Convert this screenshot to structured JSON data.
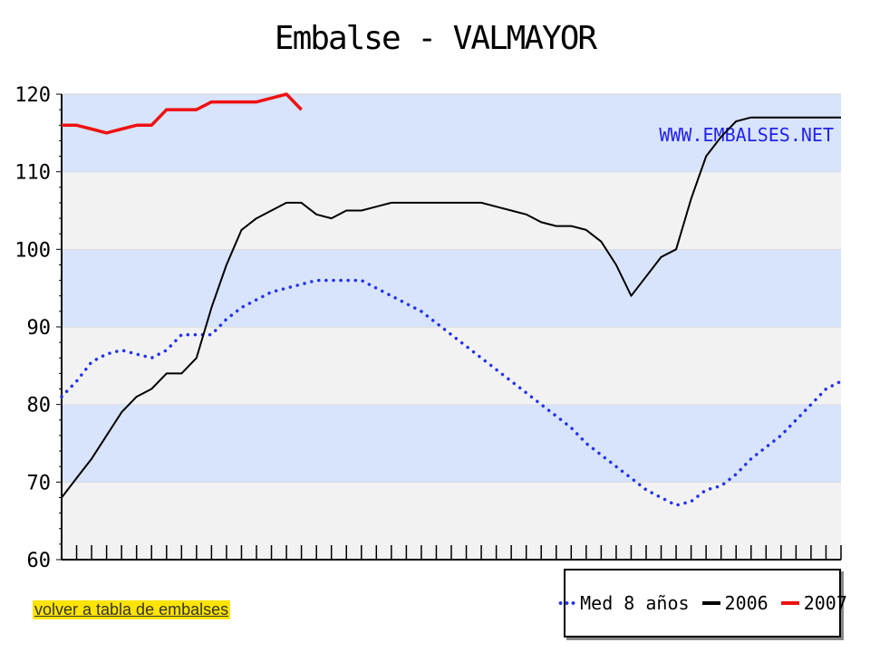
{
  "chart_data": {
    "type": "line",
    "title": "Embalse - VALMAYOR",
    "xlabel": "",
    "ylabel": "",
    "ylim": [
      60,
      120
    ],
    "yticks": [
      60,
      70,
      80,
      90,
      100,
      110,
      120
    ],
    "xlim": [
      0,
      52
    ],
    "grid": true,
    "legend_position": "bottom-right",
    "annotation": "WWW.EMBALSES.NET",
    "series": [
      {
        "name": "Med 8 años",
        "style": "dotted",
        "color": "#2233ee",
        "x": [
          0,
          1,
          2,
          3,
          4,
          5,
          6,
          7,
          8,
          9,
          10,
          11,
          12,
          13,
          14,
          15,
          16,
          17,
          18,
          19,
          20,
          21,
          22,
          23,
          24,
          25,
          26,
          27,
          28,
          29,
          30,
          31,
          32,
          33,
          34,
          35,
          36,
          37,
          38,
          39,
          40,
          41,
          42,
          43,
          44,
          45,
          46,
          47,
          48,
          49,
          50,
          51,
          52
        ],
        "values": [
          81,
          83,
          85.5,
          86.5,
          87,
          86.5,
          86,
          87,
          89,
          89,
          89,
          91,
          92.5,
          93.5,
          94.5,
          95,
          95.5,
          96,
          96,
          96,
          96,
          95,
          94,
          93,
          92,
          90.5,
          89,
          87.5,
          86,
          84.5,
          83,
          81.5,
          80,
          78.5,
          77,
          75,
          73.5,
          72,
          70.5,
          69,
          68,
          67,
          67.5,
          69,
          69.5,
          71,
          73,
          74.5,
          76,
          78,
          80,
          82,
          83
        ]
      },
      {
        "name": "2006",
        "style": "solid",
        "color": "#000000",
        "x": [
          0,
          1,
          2,
          3,
          4,
          5,
          6,
          7,
          8,
          9,
          10,
          11,
          12,
          13,
          14,
          15,
          16,
          17,
          18,
          19,
          20,
          21,
          22,
          23,
          24,
          25,
          26,
          27,
          28,
          29,
          30,
          31,
          32,
          33,
          34,
          35,
          36,
          37,
          38,
          39,
          40,
          41,
          42,
          43,
          44,
          45,
          46,
          47,
          48,
          49,
          50,
          51,
          52
        ],
        "values": [
          68,
          70.5,
          73,
          76,
          79,
          81,
          82,
          84,
          84,
          86,
          92.5,
          98,
          102.5,
          104,
          105,
          106,
          106,
          104.5,
          104,
          105,
          105,
          105.5,
          106,
          106,
          106,
          106,
          106,
          106,
          106,
          105.5,
          105,
          104.5,
          103.5,
          103,
          103,
          102.5,
          101,
          98,
          94,
          96.5,
          99,
          100,
          106.5,
          112,
          114.5,
          116.5,
          117,
          117,
          117,
          117,
          117,
          117,
          117
        ]
      },
      {
        "name": "2007",
        "style": "solid",
        "color": "#ee1111",
        "x": [
          0,
          1,
          2,
          3,
          4,
          5,
          6,
          7,
          8,
          9,
          10,
          11,
          12,
          13,
          14,
          15,
          16
        ],
        "values": [
          116,
          116,
          115.5,
          115,
          115.5,
          116,
          116,
          118,
          118,
          118,
          119,
          119,
          119,
          119,
          119.5,
          120,
          118
        ]
      }
    ]
  },
  "link": {
    "back_label": "volver a tabla de embalses"
  },
  "legend": {
    "items": [
      "Med 8 años",
      "2006",
      "2007"
    ]
  }
}
